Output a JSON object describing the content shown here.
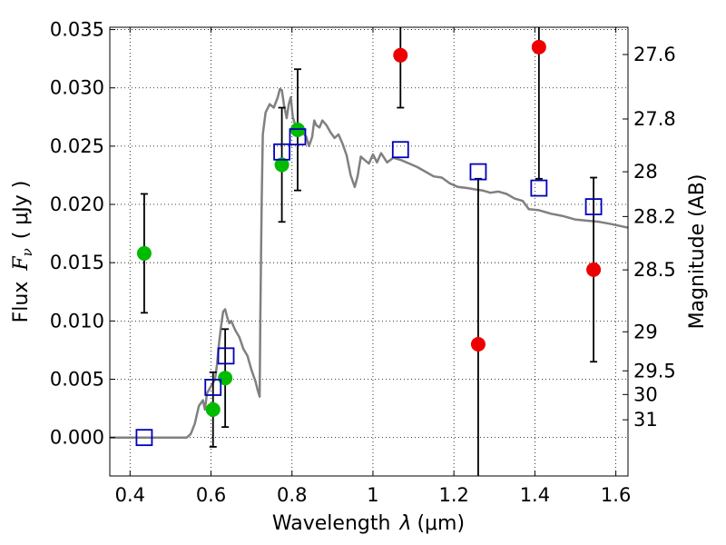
{
  "chart_data": {
    "type": "scatter",
    "xlabel_text": "Wavelength",
    "xlabel_symbol": "λ",
    "xlabel_unit": "(μm)",
    "ylabel_text": "Flux",
    "ylabel_symbol": "F",
    "ylabel_sub": "ν",
    "ylabel_unit": "( μJy )",
    "y2label": "Magnitude (AB)",
    "xlim": [
      0.35,
      1.63
    ],
    "ylim": [
      -0.0033,
      0.0352
    ],
    "grid": true,
    "x_ticks": [
      {
        "value": 0.4,
        "label": "0.4"
      },
      {
        "value": 0.6,
        "label": "0.6"
      },
      {
        "value": 0.8,
        "label": "0.8"
      },
      {
        "value": 1.0,
        "label": "1"
      },
      {
        "value": 1.2,
        "label": "1.2"
      },
      {
        "value": 1.4,
        "label": "1.4"
      },
      {
        "value": 1.6,
        "label": "1.6"
      }
    ],
    "y_ticks": [
      {
        "value": 0.0,
        "label": "0.000"
      },
      {
        "value": 0.005,
        "label": "0.005"
      },
      {
        "value": 0.01,
        "label": "0.010"
      },
      {
        "value": 0.015,
        "label": "0.015"
      },
      {
        "value": 0.02,
        "label": "0.020"
      },
      {
        "value": 0.025,
        "label": "0.025"
      },
      {
        "value": 0.03,
        "label": "0.030"
      },
      {
        "value": 0.035,
        "label": "0.035"
      }
    ],
    "y2_ticks": [
      {
        "flux": 0.03286,
        "label": "27.6"
      },
      {
        "flux": 0.02733,
        "label": "27.8"
      },
      {
        "flux": 0.0228,
        "label": "28"
      },
      {
        "flux": 0.01896,
        "label": "28.2"
      },
      {
        "flux": 0.01438,
        "label": "28.5"
      },
      {
        "flux": 0.00907,
        "label": "29"
      },
      {
        "flux": 0.00572,
        "label": "29.5"
      },
      {
        "flux": 0.00369,
        "label": "30"
      },
      {
        "flux": 0.00152,
        "label": "31"
      }
    ],
    "colors": {
      "model": "#808080",
      "green": "#00bb00",
      "red": "#ee0000",
      "blue": "#0000bb",
      "errorbar": "#000000"
    },
    "series": [
      {
        "marker": "filled-circle",
        "color_key": "green",
        "points": [
          {
            "x": 0.435,
            "y": 0.0158,
            "err": 0.0051
          },
          {
            "x": 0.605,
            "y": 0.0024,
            "err": 0.0032
          },
          {
            "x": 0.635,
            "y": 0.0051,
            "err": 0.0042
          },
          {
            "x": 0.775,
            "y": 0.0234,
            "err": 0.0049
          },
          {
            "x": 0.814,
            "y": 0.0264,
            "err": 0.0052
          }
        ]
      },
      {
        "marker": "filled-circle",
        "color_key": "red",
        "points": [
          {
            "x": 1.068,
            "y": 0.0328,
            "err": 0.0045
          },
          {
            "x": 1.26,
            "y": 0.008,
            "err": 0.0142
          },
          {
            "x": 1.41,
            "y": 0.0335,
            "err": 0.0113
          },
          {
            "x": 1.545,
            "y": 0.0144,
            "err": 0.0079
          }
        ]
      },
      {
        "marker": "open-square",
        "color_key": "blue",
        "points": [
          {
            "x": 0.435,
            "y": 0.0
          },
          {
            "x": 0.605,
            "y": 0.0043
          },
          {
            "x": 0.637,
            "y": 0.007
          },
          {
            "x": 0.775,
            "y": 0.0245
          },
          {
            "x": 0.814,
            "y": 0.0258
          },
          {
            "x": 1.068,
            "y": 0.0247
          },
          {
            "x": 1.26,
            "y": 0.0228
          },
          {
            "x": 1.41,
            "y": 0.0214
          },
          {
            "x": 1.545,
            "y": 0.0198
          }
        ]
      }
    ],
    "model_curve": [
      [
        0.35,
        0.0
      ],
      [
        0.54,
        0.0
      ],
      [
        0.55,
        0.0003
      ],
      [
        0.56,
        0.0012
      ],
      [
        0.57,
        0.0027
      ],
      [
        0.58,
        0.0032
      ],
      [
        0.585,
        0.0024
      ],
      [
        0.59,
        0.0038
      ],
      [
        0.6,
        0.0044
      ],
      [
        0.61,
        0.005
      ],
      [
        0.615,
        0.0063
      ],
      [
        0.62,
        0.0081
      ],
      [
        0.625,
        0.0096
      ],
      [
        0.63,
        0.0108
      ],
      [
        0.635,
        0.011
      ],
      [
        0.64,
        0.0103
      ],
      [
        0.645,
        0.0098
      ],
      [
        0.65,
        0.01
      ],
      [
        0.66,
        0.0092
      ],
      [
        0.67,
        0.0086
      ],
      [
        0.68,
        0.0076
      ],
      [
        0.69,
        0.007
      ],
      [
        0.7,
        0.0058
      ],
      [
        0.71,
        0.0048
      ],
      [
        0.715,
        0.0041
      ],
      [
        0.72,
        0.0035
      ],
      [
        0.722,
        0.0105
      ],
      [
        0.725,
        0.02
      ],
      [
        0.728,
        0.026
      ],
      [
        0.735,
        0.0279
      ],
      [
        0.745,
        0.0286
      ],
      [
        0.755,
        0.0283
      ],
      [
        0.765,
        0.0292
      ],
      [
        0.77,
        0.0299
      ],
      [
        0.775,
        0.0298
      ],
      [
        0.78,
        0.0286
      ],
      [
        0.787,
        0.0274
      ],
      [
        0.792,
        0.0286
      ],
      [
        0.797,
        0.0292
      ],
      [
        0.802,
        0.0275
      ],
      [
        0.81,
        0.0266
      ],
      [
        0.82,
        0.0268
      ],
      [
        0.828,
        0.0261
      ],
      [
        0.835,
        0.0258
      ],
      [
        0.842,
        0.025
      ],
      [
        0.85,
        0.0258
      ],
      [
        0.855,
        0.0272
      ],
      [
        0.86,
        0.0268
      ],
      [
        0.868,
        0.0266
      ],
      [
        0.875,
        0.0272
      ],
      [
        0.885,
        0.0268
      ],
      [
        0.895,
        0.0262
      ],
      [
        0.905,
        0.0257
      ],
      [
        0.915,
        0.026
      ],
      [
        0.925,
        0.0252
      ],
      [
        0.935,
        0.0242
      ],
      [
        0.945,
        0.0225
      ],
      [
        0.955,
        0.0215
      ],
      [
        0.962,
        0.0224
      ],
      [
        0.97,
        0.0241
      ],
      [
        0.98,
        0.0238
      ],
      [
        0.99,
        0.0235
      ],
      [
        1.0,
        0.0243
      ],
      [
        1.01,
        0.0236
      ],
      [
        1.02,
        0.0244
      ],
      [
        1.035,
        0.0236
      ],
      [
        1.05,
        0.024
      ],
      [
        1.07,
        0.0238
      ],
      [
        1.09,
        0.0235
      ],
      [
        1.11,
        0.0232
      ],
      [
        1.13,
        0.0228
      ],
      [
        1.15,
        0.0224
      ],
      [
        1.17,
        0.0223
      ],
      [
        1.19,
        0.0218
      ],
      [
        1.21,
        0.0215
      ],
      [
        1.235,
        0.0214
      ],
      [
        1.25,
        0.0213
      ],
      [
        1.27,
        0.0212
      ],
      [
        1.29,
        0.021
      ],
      [
        1.31,
        0.0211
      ],
      [
        1.33,
        0.0209
      ],
      [
        1.35,
        0.0205
      ],
      [
        1.37,
        0.0203
      ],
      [
        1.385,
        0.0196
      ],
      [
        1.41,
        0.0195
      ],
      [
        1.44,
        0.0192
      ],
      [
        1.47,
        0.019
      ],
      [
        1.5,
        0.0187
      ],
      [
        1.53,
        0.0186
      ],
      [
        1.56,
        0.0185
      ],
      [
        1.59,
        0.0183
      ],
      [
        1.63,
        0.018
      ]
    ]
  }
}
